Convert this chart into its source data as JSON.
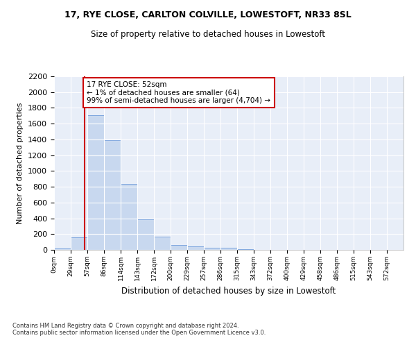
{
  "title1": "17, RYE CLOSE, CARLTON COLVILLE, LOWESTOFT, NR33 8SL",
  "title2": "Size of property relative to detached houses in Lowestoft",
  "xlabel": "Distribution of detached houses by size in Lowestoft",
  "ylabel": "Number of detached properties",
  "bar_color": "#c8d8ef",
  "bar_edge_color": "#5b8ed6",
  "bin_labels": [
    "0sqm",
    "29sqm",
    "57sqm",
    "86sqm",
    "114sqm",
    "143sqm",
    "172sqm",
    "200sqm",
    "229sqm",
    "257sqm",
    "286sqm",
    "315sqm",
    "343sqm",
    "372sqm",
    "400sqm",
    "429sqm",
    "458sqm",
    "486sqm",
    "515sqm",
    "543sqm",
    "572sqm"
  ],
  "bar_heights": [
    15,
    155,
    1705,
    1390,
    835,
    385,
    165,
    65,
    40,
    30,
    30,
    5,
    0,
    0,
    0,
    0,
    0,
    0,
    0,
    0,
    0
  ],
  "annotation_line1": "17 RYE CLOSE: 52sqm",
  "annotation_line2": "← 1% of detached houses are smaller (64)",
  "annotation_line3": "99% of semi-detached houses are larger (4,704) →",
  "annotation_box_color": "#ffffff",
  "annotation_box_edge": "#cc0000",
  "vline_color": "#cc0000",
  "ylim": [
    0,
    2200
  ],
  "yticks": [
    0,
    200,
    400,
    600,
    800,
    1000,
    1200,
    1400,
    1600,
    1800,
    2000,
    2200
  ],
  "footer_text": "Contains HM Land Registry data © Crown copyright and database right 2024.\nContains public sector information licensed under the Open Government Licence v3.0.",
  "bg_color": "#ffffff",
  "plot_bg_color": "#e8eef8",
  "grid_color": "#ffffff"
}
